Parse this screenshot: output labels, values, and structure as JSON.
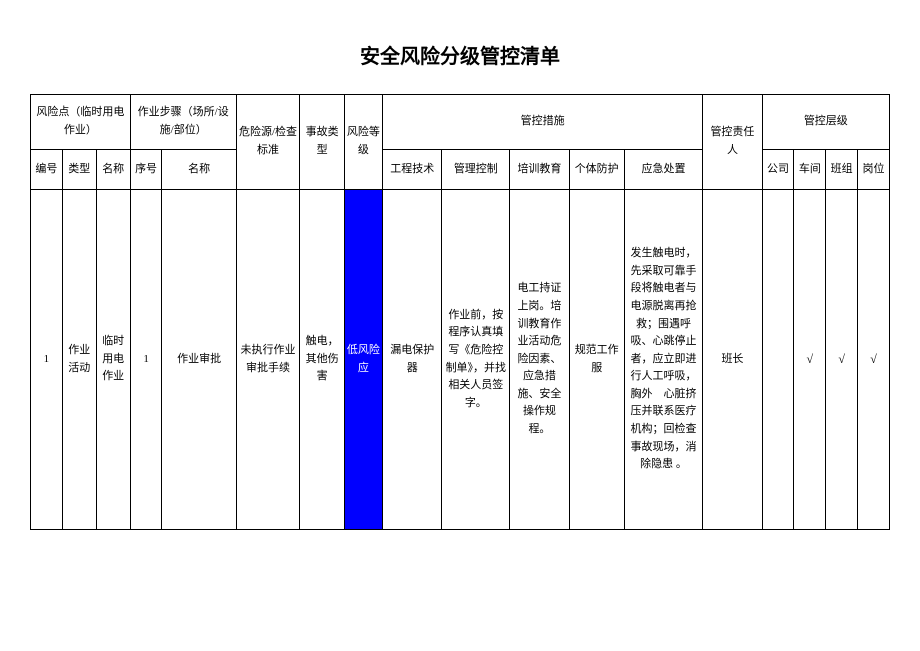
{
  "title": "安全风险分级管控清单",
  "headers": {
    "risk_point": "风险点（临时用电作业）",
    "work_steps": "作业步骤（场所/设施/部位）",
    "hazard_check": "危险源/检查标准",
    "accident_type": "事故类型",
    "risk_level": "风险等级",
    "control_measures": "管控措施",
    "responsible": "管控责任人",
    "control_level": "管控层级",
    "sub_num1": "编号",
    "sub_type": "类型",
    "sub_name1": "名称",
    "sub_seq": "序号",
    "sub_name2": "名称",
    "sub_eng": "工程技术",
    "sub_mgmt": "管理控制",
    "sub_training": "培训教育",
    "sub_ppe": "个体防护",
    "sub_emergency": "应急处置",
    "sub_company": "公司",
    "sub_workshop": "车间",
    "sub_team": "班组",
    "sub_post": "岗位"
  },
  "row": {
    "num": "1",
    "type": "作业活动",
    "name": "临时用电作业",
    "seq": "1",
    "step_name": "作业审批",
    "hazard": "未执行作业审批手续",
    "accident": "触电，其他伤害",
    "risk_level": "低风险应",
    "eng": "漏电保护器",
    "mgmt": "作业前，按程序认真填写《危险控制单》，并找相关人员签字。",
    "training": "电工持证上岗。培训教育作业活动危险因素、应急措施、安全操作规程。",
    "ppe": "规范工作服",
    "emergency": "发生触电时，先采取可靠手段将触电者与电源脱离再抢救；围遇呼吸、心跳停止者，应立即进行人工呼吸，胸外　心脏挤压并联系医疗机构；回检查事故现场，消除隐患 。",
    "responsible": "班长",
    "company": "",
    "workshop": "√",
    "team": "√",
    "post": "√"
  },
  "colors": {
    "risk_bg": "#0000ff",
    "risk_fg": "#ffffff",
    "border": "#000000",
    "bg": "#ffffff"
  }
}
